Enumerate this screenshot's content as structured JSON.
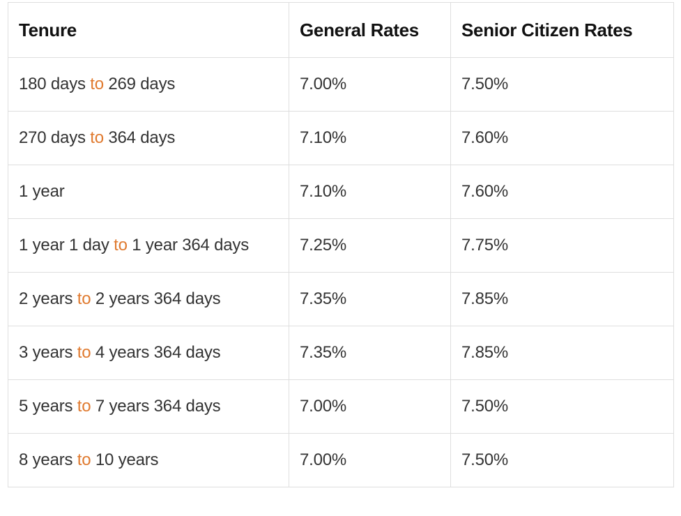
{
  "table": {
    "headers": {
      "tenure": "Tenure",
      "general": "General Rates",
      "senior": "Senior Citizen Rates"
    },
    "accent_color": "#e07a2f",
    "rows": [
      {
        "tenure_start": "180 days",
        "tenure_to": "to",
        "tenure_end": "269 days",
        "general": "7.00%",
        "senior": "7.50%"
      },
      {
        "tenure_start": "270 days",
        "tenure_to": "to",
        "tenure_end": "364 days",
        "general": "7.10%",
        "senior": "7.60%"
      },
      {
        "tenure_start": "1 year",
        "tenure_to": "",
        "tenure_end": "",
        "general": "7.10%",
        "senior": "7.60%"
      },
      {
        "tenure_start": "1 year 1 day",
        "tenure_to": "to",
        "tenure_end": "1 year 364 days",
        "general": "7.25%",
        "senior": "7.75%"
      },
      {
        "tenure_start": "2 years",
        "tenure_to": "to",
        "tenure_end": "2 years 364 days",
        "general": "7.35%",
        "senior": "7.85%"
      },
      {
        "tenure_start": "3 years",
        "tenure_to": "to",
        "tenure_end": "4 years 364 days",
        "general": "7.35%",
        "senior": "7.85%"
      },
      {
        "tenure_start": "5 years",
        "tenure_to": "to",
        "tenure_end": "7 years 364 days",
        "general": "7.00%",
        "senior": "7.50%"
      },
      {
        "tenure_start": "8 years",
        "tenure_to": "to",
        "tenure_end": "10 years",
        "general": "7.00%",
        "senior": "7.50%"
      }
    ]
  }
}
